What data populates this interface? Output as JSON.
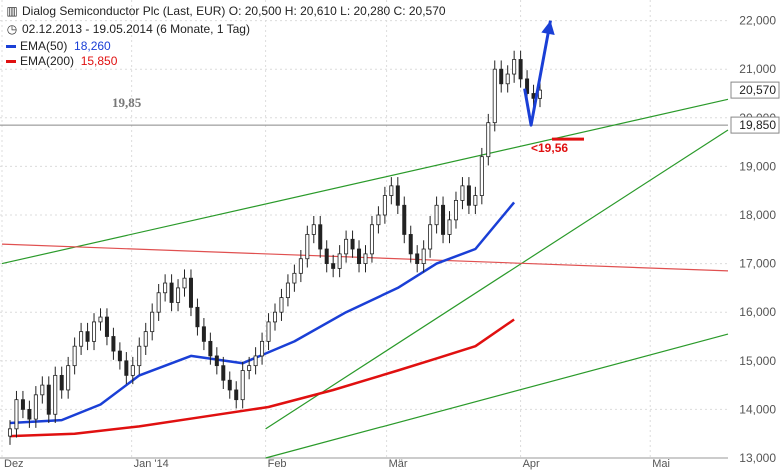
{
  "header": {
    "title": "Dialog Semiconductor Plc (Last, EUR)  O: 20,500  H: 20,610  L: 20,280  C: 20,570",
    "period": "02.12.2013 - 19.05.2014 (6 Monate, 1 Tag)",
    "chart_icon": "candlestick-chart-icon",
    "clock_icon": "clock-icon",
    "legend": [
      {
        "label": "EMA(50)",
        "value": "18,260",
        "color": "#1a3fd6"
      },
      {
        "label": "EMA(200)",
        "value": "15,850",
        "color": "#e01010"
      }
    ]
  },
  "annotations": {
    "level_1985": "19,85",
    "level_1956": "<19,56"
  },
  "price_tags": {
    "last": "20,570",
    "level": "19,850"
  },
  "colors": {
    "green_trend": "#2a9a2a",
    "red_trend": "#e05050",
    "ema50": "#1a3fd6",
    "ema200": "#e01010",
    "forecast_arrow": "#1a3fd6",
    "support_marker": "#e01010"
  },
  "chart_data": {
    "type": "candlestick",
    "title": "Dialog Semiconductor Plc (Last, EUR)",
    "ylim": [
      13.0,
      22.5
    ],
    "x_range": [
      "2013-12-02",
      "2014-05-19"
    ],
    "y_ticks": [
      {
        "value": 13.0,
        "label": "13,000"
      },
      {
        "value": 14.0,
        "label": "14,000"
      },
      {
        "value": 15.0,
        "label": "15,000"
      },
      {
        "value": 16.0,
        "label": "16,000"
      },
      {
        "value": 17.0,
        "label": "17,000"
      },
      {
        "value": 18.0,
        "label": "18,000"
      },
      {
        "value": 19.0,
        "label": "19,000"
      },
      {
        "value": 20.0,
        "label": "20,000"
      },
      {
        "value": 21.0,
        "label": "21,000"
      },
      {
        "value": 22.0,
        "label": "22,000"
      }
    ],
    "x_ticks": [
      {
        "date": "2013-12-02",
        "label": "Dez"
      },
      {
        "date": "2014-01-01",
        "label": "Jan '14"
      },
      {
        "date": "2014-02-01",
        "label": "Feb"
      },
      {
        "date": "2014-03-01",
        "label": "Mär"
      },
      {
        "date": "2014-04-01",
        "label": "Apr"
      },
      {
        "date": "2014-05-01",
        "label": "Mai"
      }
    ],
    "close_prices": [
      13.6,
      14.2,
      14.0,
      13.8,
      14.3,
      14.5,
      13.9,
      14.7,
      14.4,
      14.9,
      15.3,
      15.6,
      15.4,
      15.8,
      15.9,
      15.5,
      15.2,
      15.0,
      14.7,
      14.9,
      15.3,
      15.6,
      16.0,
      16.4,
      16.6,
      16.2,
      16.5,
      16.7,
      16.1,
      15.7,
      15.4,
      15.1,
      14.9,
      14.6,
      14.4,
      14.2,
      14.8,
      14.9,
      15.1,
      15.4,
      15.8,
      16.0,
      16.3,
      16.6,
      16.8,
      17.1,
      17.6,
      17.8,
      17.3,
      17.0,
      16.9,
      17.2,
      17.5,
      17.3,
      17.0,
      17.2,
      17.8,
      18.0,
      18.4,
      18.6,
      18.2,
      17.6,
      17.2,
      17.0,
      17.3,
      17.8,
      18.2,
      17.6,
      17.9,
      18.3,
      18.6,
      18.2,
      18.4,
      19.2,
      19.9,
      21.0,
      20.7,
      20.9,
      21.2,
      20.8,
      20.5,
      20.4,
      20.57
    ],
    "ema50": [
      [
        0,
        13.72
      ],
      [
        8,
        13.78
      ],
      [
        14,
        14.1
      ],
      [
        20,
        14.7
      ],
      [
        28,
        15.1
      ],
      [
        36,
        14.95
      ],
      [
        44,
        15.4
      ],
      [
        52,
        16.0
      ],
      [
        60,
        16.5
      ],
      [
        66,
        17.0
      ],
      [
        72,
        17.3
      ],
      [
        78,
        18.26
      ]
    ],
    "ema200": [
      [
        0,
        13.45
      ],
      [
        10,
        13.5
      ],
      [
        20,
        13.65
      ],
      [
        30,
        13.85
      ],
      [
        40,
        14.05
      ],
      [
        50,
        14.4
      ],
      [
        60,
        14.8
      ],
      [
        66,
        15.05
      ],
      [
        72,
        15.3
      ],
      [
        78,
        15.85
      ]
    ],
    "trendlines": [
      {
        "name": "green-upper",
        "color": "#2a9a2a",
        "points": [
          [
            "2013-12-02",
            17.0
          ],
          [
            "2014-05-19",
            20.38
          ]
        ]
      },
      {
        "name": "green-mid",
        "color": "#2a9a2a",
        "points": [
          [
            "2014-02-01",
            13.6
          ],
          [
            "2014-05-19",
            19.75
          ]
        ]
      },
      {
        "name": "green-lower",
        "color": "#2a9a2a",
        "points": [
          [
            "2014-02-01",
            13.0
          ],
          [
            "2014-05-19",
            15.55
          ]
        ]
      },
      {
        "name": "red-resistance",
        "color": "#e05050",
        "points": [
          [
            "2013-12-02",
            17.4
          ],
          [
            "2014-05-19",
            16.85
          ]
        ]
      }
    ],
    "horizontal_levels": [
      {
        "value": 19.85,
        "label": "19,85"
      }
    ],
    "support_marker": {
      "value": 19.56,
      "label": "<19,56"
    },
    "forecast_arrow": [
      [
        79,
        20.6
      ],
      [
        80,
        19.85
      ],
      [
        83,
        22.0
      ]
    ]
  }
}
